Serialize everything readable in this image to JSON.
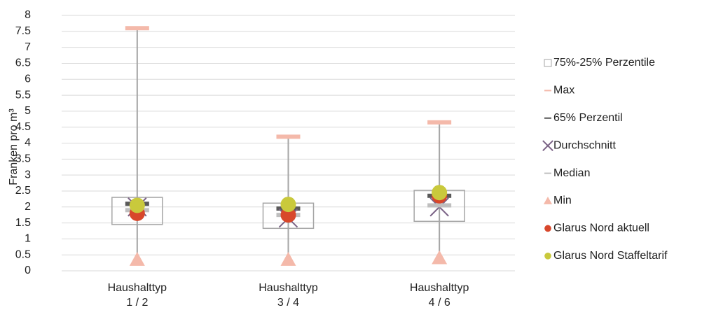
{
  "chart_data": {
    "type": "box",
    "y_label": "Franken pro m³",
    "categories": [
      [
        "Haushalttyp",
        "1 / 2"
      ],
      [
        "Haushalttyp",
        "3 / 4"
      ],
      [
        "Haushalttyp",
        "4 / 6"
      ]
    ],
    "ylim": [
      0,
      8
    ],
    "yticks": [
      0,
      0.5,
      1,
      1.5,
      2,
      2.5,
      3,
      3.5,
      4,
      4.5,
      5,
      5.5,
      6,
      6.5,
      7,
      7.5,
      8
    ],
    "grid": true,
    "legend": "right",
    "series": [
      {
        "name": "75%-25% Perzentile",
        "marker": "box",
        "color": "#a6a6a6",
        "values": [
          [
            1.45,
            2.3
          ],
          [
            1.33,
            2.12
          ],
          [
            1.55,
            2.52
          ]
        ]
      },
      {
        "name": "Max",
        "marker": "dash",
        "color": "#f4b9aa",
        "values": [
          7.6,
          4.2,
          4.65
        ]
      },
      {
        "name": "65% Perzentil",
        "marker": "dash",
        "color": "#595959",
        "values": [
          2.1,
          1.95,
          2.35
        ]
      },
      {
        "name": "Durchschnitt",
        "marker": "x",
        "color": "#7b6386",
        "values": [
          2.0,
          1.65,
          2.0
        ]
      },
      {
        "name": "Median",
        "marker": "dash",
        "color": "#bfbfbf",
        "values": [
          1.9,
          1.75,
          2.05
        ]
      },
      {
        "name": "Min",
        "marker": "triangle",
        "color": "#f4b9aa",
        "values": [
          0.35,
          0.35,
          0.4
        ]
      },
      {
        "name": "Glarus Nord aktuell",
        "marker": "circle",
        "color": "#d8472b",
        "values": [
          1.8,
          1.75,
          2.35
        ]
      },
      {
        "name": "Glarus Nord Staffeltarif",
        "marker": "circle",
        "color": "#c9c93c",
        "values": [
          2.05,
          2.08,
          2.45
        ]
      }
    ]
  }
}
